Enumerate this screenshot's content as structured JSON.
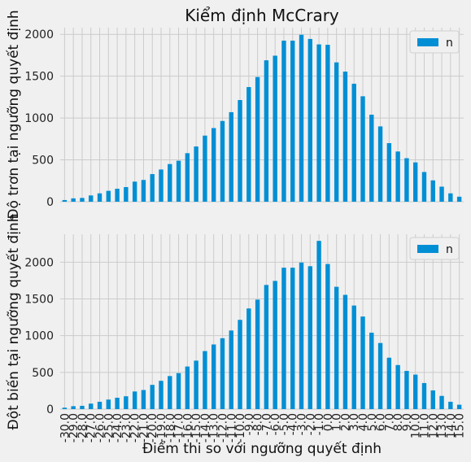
{
  "chart_data": [
    {
      "type": "bar",
      "title": "Kiểm định McCrary",
      "ylabel": "Độ trơn tại ngưỡng quyết định",
      "xlabel": "",
      "legend": {
        "entries": [
          "n"
        ],
        "placement": "top-right"
      },
      "grid": true,
      "ylim": [
        0,
        2080
      ],
      "yticks": [
        0,
        500,
        1000,
        1500,
        2000
      ],
      "series": [
        {
          "name": "n",
          "values": [
            20,
            40,
            45,
            75,
            100,
            130,
            155,
            175,
            240,
            260,
            330,
            385,
            450,
            490,
            580,
            660,
            790,
            880,
            965,
            1070,
            1215,
            1370,
            1490,
            1690,
            1745,
            1925,
            1925,
            1995,
            1945,
            1880,
            1875,
            1665,
            1555,
            1410,
            1260,
            1040,
            900,
            700,
            600,
            520,
            470,
            355,
            255,
            180,
            100,
            60
          ]
        }
      ]
    },
    {
      "type": "bar",
      "title": "",
      "ylabel": "Đột biến tại ngưỡng quyết định",
      "xlabel": "Điểm thi so với ngưỡng quyết định",
      "legend": {
        "entries": [
          "n"
        ],
        "placement": "top-right"
      },
      "grid": true,
      "ylim": [
        0,
        2380
      ],
      "yticks": [
        0,
        500,
        1000,
        1500,
        2000
      ],
      "categories": [
        "-30.0",
        "-29.0",
        "-28.0",
        "-27.0",
        "-26.0",
        "-25.0",
        "-24.0",
        "-23.0",
        "-22.0",
        "-21.0",
        "-20.0",
        "-19.0",
        "-18.0",
        "-17.0",
        "-16.0",
        "-15.0",
        "-14.0",
        "-13.0",
        "-12.0",
        "-11.0",
        "-10.0",
        "-9.0",
        "-8.0",
        "-7.0",
        "-6.0",
        "-5.0",
        "-4.0",
        "-3.0",
        "-2.0",
        "-1.0",
        "0.0",
        "1.0",
        "2.0",
        "3.0",
        "4.0",
        "5.0",
        "6.0",
        "7.0",
        "8.0",
        "9.0",
        "10.0",
        "11.0",
        "12.0",
        "13.0",
        "14.0",
        "15.0"
      ],
      "series": [
        {
          "name": "n",
          "values": [
            20,
            40,
            45,
            75,
            100,
            130,
            155,
            175,
            240,
            260,
            330,
            385,
            450,
            490,
            580,
            660,
            790,
            880,
            965,
            1070,
            1215,
            1370,
            1490,
            1690,
            1745,
            1925,
            1925,
            1995,
            1945,
            2290,
            1975,
            1665,
            1555,
            1410,
            1260,
            1040,
            900,
            700,
            600,
            520,
            470,
            355,
            255,
            180,
            100,
            60
          ]
        }
      ]
    }
  ],
  "colors": {
    "bar": "#008fd5",
    "background": "#f0f0f0",
    "grid": "#cbcbcb"
  }
}
